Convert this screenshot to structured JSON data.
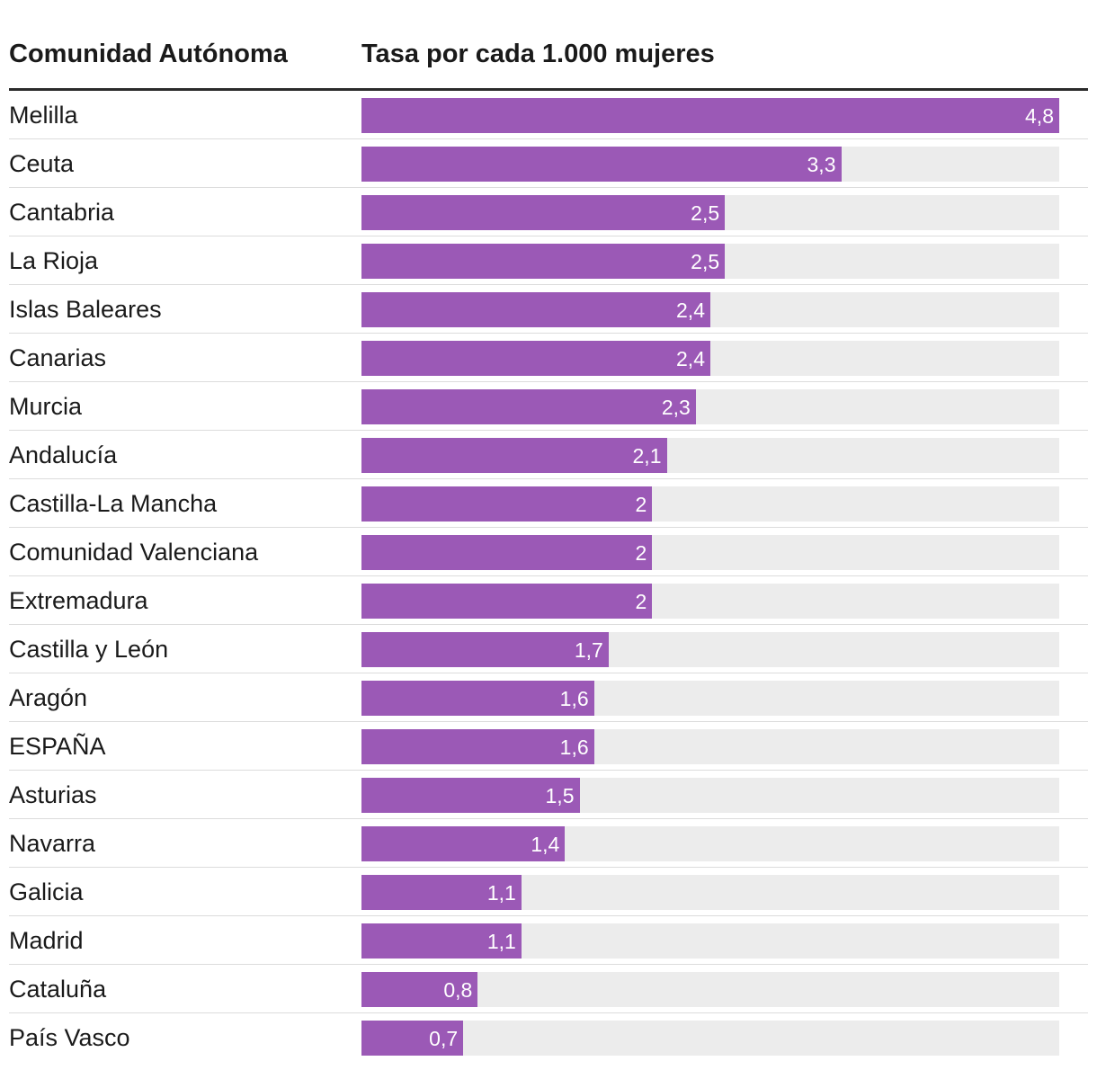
{
  "header": {
    "name_label": "Comunidad Autónoma",
    "value_label": "Tasa por cada 1.000 mujeres"
  },
  "colors": {
    "bar": "#9b59b6",
    "track": "#ececec"
  },
  "chart_data": {
    "type": "bar",
    "orientation": "horizontal",
    "title": "",
    "xlabel": "Tasa por cada 1.000 mujeres",
    "ylabel": "Comunidad Autónoma",
    "xlim": [
      0,
      4.8
    ],
    "grid": false,
    "rows": [
      {
        "name": "Melilla",
        "value": 4.8,
        "label": "4,8"
      },
      {
        "name": "Ceuta",
        "value": 3.3,
        "label": "3,3"
      },
      {
        "name": "Cantabria",
        "value": 2.5,
        "label": "2,5"
      },
      {
        "name": "La Rioja",
        "value": 2.5,
        "label": "2,5"
      },
      {
        "name": "Islas Baleares",
        "value": 2.4,
        "label": "2,4"
      },
      {
        "name": "Canarias",
        "value": 2.4,
        "label": "2,4"
      },
      {
        "name": "Murcia",
        "value": 2.3,
        "label": "2,3"
      },
      {
        "name": "Andalucía",
        "value": 2.1,
        "label": "2,1"
      },
      {
        "name": "Castilla-La Mancha",
        "value": 2,
        "label": "2"
      },
      {
        "name": "Comunidad Valenciana",
        "value": 2,
        "label": "2"
      },
      {
        "name": "Extremadura",
        "value": 2,
        "label": "2"
      },
      {
        "name": "Castilla y León",
        "value": 1.7,
        "label": "1,7"
      },
      {
        "name": "Aragón",
        "value": 1.6,
        "label": "1,6"
      },
      {
        "name": "ESPAÑA",
        "value": 1.6,
        "label": "1,6"
      },
      {
        "name": "Asturias",
        "value": 1.5,
        "label": "1,5"
      },
      {
        "name": "Navarra",
        "value": 1.4,
        "label": "1,4"
      },
      {
        "name": "Galicia",
        "value": 1.1,
        "label": "1,1"
      },
      {
        "name": "Madrid",
        "value": 1.1,
        "label": "1,1"
      },
      {
        "name": "Cataluña",
        "value": 0.8,
        "label": "0,8"
      },
      {
        "name": "País Vasco",
        "value": 0.7,
        "label": "0,7"
      }
    ]
  }
}
